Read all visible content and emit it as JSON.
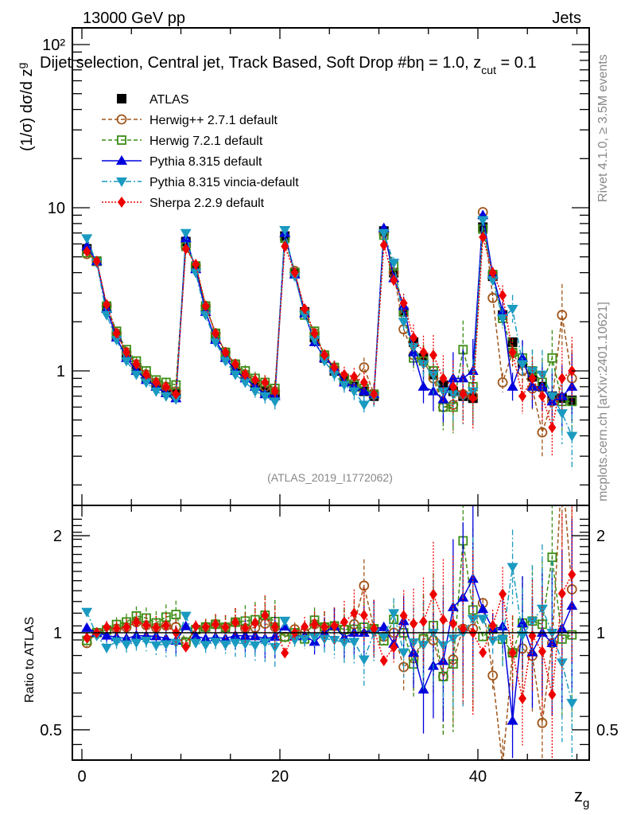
{
  "header": {
    "left": "13000 GeV pp",
    "right": "Jets",
    "title_prefix": "Dijet selection, Central jet, Track Based, Soft Drop #b",
    "title_beta": "η = 1.0, z",
    "title_sub": "cut",
    "title_suffix": " = 0.1"
  },
  "side_labels": {
    "rivet": "Rivet 4.1.0, ≥ 3.5M events",
    "mcplots": "mcplots.cern.ch [arXiv:2401.10621]"
  },
  "analysis_tag": "(ATLAS_2019_I1772062)",
  "chart_data": [
    {
      "type": "line",
      "panel": "main",
      "ylabel": "(1/σ) dσ/d z_g",
      "yscale": "log",
      "ylim": [
        0.2,
        120
      ],
      "xlim": [
        -0.5,
        51
      ],
      "y_ticks": [
        {
          "v": 1,
          "label": "1"
        },
        {
          "v": 10,
          "label": "10"
        },
        {
          "v": 100,
          "label": "10²"
        }
      ],
      "x": [
        0.5,
        1.5,
        2.5,
        3.5,
        4.5,
        5.5,
        6.5,
        7.5,
        8.5,
        9.5,
        10.5,
        11.5,
        12.5,
        13.5,
        14.5,
        15.5,
        16.5,
        17.5,
        18.5,
        19.5,
        20.5,
        21.5,
        22.5,
        23.5,
        24.5,
        25.5,
        26.5,
        27.5,
        28.5,
        29.5,
        30.5,
        31.5,
        32.5,
        33.5,
        34.5,
        35.5,
        36.5,
        37.5,
        38.5,
        39.5,
        40.5,
        41.5,
        42.5,
        43.5,
        44.5,
        45.5,
        46.5,
        47.5,
        48.5,
        49.5
      ],
      "series": [
        {
          "name": "ATLAS",
          "color": "#000000",
          "marker": "square-filled",
          "line": "none",
          "values": [
            5.6,
            4.7,
            2.45,
            1.65,
            1.25,
            1.02,
            0.9,
            0.82,
            0.76,
            0.72,
            6.2,
            4.3,
            2.4,
            1.6,
            1.25,
            1.02,
            0.92,
            0.82,
            0.75,
            0.72,
            6.7,
            4.0,
            2.3,
            1.6,
            1.2,
            1.0,
            0.88,
            0.8,
            0.75,
            0.7,
            7.2,
            4.0,
            2.3,
            1.5,
            1.2,
            0.95,
            0.82,
            0.75,
            0.7,
            0.68,
            7.6,
            3.8,
            2.2,
            1.5,
            1.12,
            0.92,
            0.8,
            0.7,
            0.68,
            0.66
          ]
        },
        {
          "name": "Herwig++ 2.7.1 default",
          "color": "#a0561c",
          "marker": "circle-open",
          "line": "dashed",
          "values": [
            5.2,
            4.7,
            2.5,
            1.7,
            1.3,
            1.1,
            0.95,
            0.85,
            0.8,
            0.75,
            5.8,
            4.4,
            2.5,
            1.7,
            1.3,
            1.1,
            0.95,
            0.85,
            0.8,
            0.75,
            6.5,
            4.1,
            2.3,
            1.7,
            1.25,
            1.05,
            0.9,
            0.85,
            1.05,
            0.72,
            7.0,
            4.0,
            1.8,
            1.25,
            1.15,
            0.9,
            0.6,
            0.62,
            0.72,
            0.7,
            9.4,
            2.8,
            0.85,
            1.3,
            1.0,
            0.78,
            0.42,
            0.65,
            2.2,
            0.9
          ]
        },
        {
          "name": "Herwig 7.2.1 default",
          "color": "#3a8d14",
          "marker": "square-open",
          "line": "dashed",
          "values": [
            5.3,
            4.7,
            2.5,
            1.75,
            1.35,
            1.15,
            1.0,
            0.88,
            0.85,
            0.82,
            5.8,
            4.4,
            2.5,
            1.7,
            1.3,
            1.1,
            1.0,
            0.9,
            0.85,
            0.78,
            6.5,
            4.0,
            2.2,
            1.75,
            1.25,
            1.05,
            0.9,
            0.82,
            0.78,
            0.72,
            6.8,
            4.4,
            2.3,
            1.2,
            1.15,
            1.0,
            0.6,
            0.6,
            1.35,
            0.8,
            7.4,
            3.9,
            2.1,
            1.3,
            1.2,
            1.0,
            0.85,
            1.2,
            0.65,
            0.65
          ]
        },
        {
          "name": "Pythia 8.315 default",
          "color": "#0000dd",
          "marker": "triangle-up",
          "line": "solid",
          "values": [
            5.8,
            4.7,
            2.4,
            1.6,
            1.2,
            1.0,
            0.88,
            0.8,
            0.73,
            0.68,
            6.5,
            4.2,
            2.3,
            1.55,
            1.2,
            1.0,
            0.9,
            0.8,
            0.72,
            0.7,
            7.0,
            3.9,
            2.25,
            1.5,
            1.2,
            1.05,
            0.85,
            0.8,
            0.75,
            0.72,
            7.5,
            3.7,
            2.5,
            1.3,
            0.8,
            0.75,
            0.67,
            0.9,
            0.9,
            1.0,
            9.0,
            3.9,
            2.3,
            0.8,
            1.2,
            0.8,
            0.8,
            0.65,
            0.7,
            0.8
          ]
        },
        {
          "name": "Pythia 8.315 vincia-default",
          "color": "#1a9ac0",
          "marker": "triangle-down",
          "line": "dashdot",
          "values": [
            6.5,
            4.6,
            2.2,
            1.55,
            1.15,
            0.95,
            0.85,
            0.75,
            0.7,
            0.67,
            7.0,
            4.0,
            2.2,
            1.5,
            1.15,
            0.95,
            0.85,
            0.75,
            0.7,
            0.65,
            7.3,
            3.8,
            2.2,
            1.55,
            1.15,
            0.95,
            0.82,
            0.75,
            0.62,
            0.7,
            7.0,
            4.6,
            2.0,
            1.4,
            1.1,
            0.95,
            0.75,
            0.72,
            0.7,
            0.75,
            8.4,
            3.6,
            2.1,
            2.4,
            1.1,
            1.0,
            0.95,
            0.7,
            0.55,
            0.4
          ]
        },
        {
          "name": "Sherpa 2.2.9 default",
          "color": "#ee0000",
          "marker": "diamond-filled",
          "line": "dotted",
          "values": [
            5.4,
            4.7,
            2.55,
            1.7,
            1.3,
            1.1,
            0.95,
            0.85,
            0.8,
            0.72,
            5.6,
            4.5,
            2.5,
            1.7,
            1.3,
            1.1,
            0.95,
            0.88,
            0.85,
            0.75,
            5.8,
            4.0,
            2.4,
            1.7,
            1.25,
            1.05,
            0.95,
            0.92,
            0.85,
            0.72,
            5.9,
            3.6,
            2.6,
            1.6,
            1.3,
            1.25,
            0.9,
            0.8,
            0.72,
            0.68,
            6.6,
            4.0,
            2.9,
            1.3,
            0.7,
            0.9,
            0.7,
            0.45,
            0.9,
            1.0
          ]
        }
      ]
    },
    {
      "type": "line",
      "panel": "ratio",
      "ylabel": "Ratio to ATLAS",
      "xlabel": "z_g",
      "yscale": "log",
      "ylim": [
        0.42,
        2.35
      ],
      "y_ticks": [
        {
          "v": 0.5,
          "label": "0.5"
        },
        {
          "v": 1,
          "label": "1"
        },
        {
          "v": 2,
          "label": "2"
        }
      ],
      "x_ticks": [
        {
          "v": 0,
          "label": "0"
        },
        {
          "v": 20,
          "label": "20"
        },
        {
          "v": 40,
          "label": "40"
        }
      ]
    }
  ]
}
